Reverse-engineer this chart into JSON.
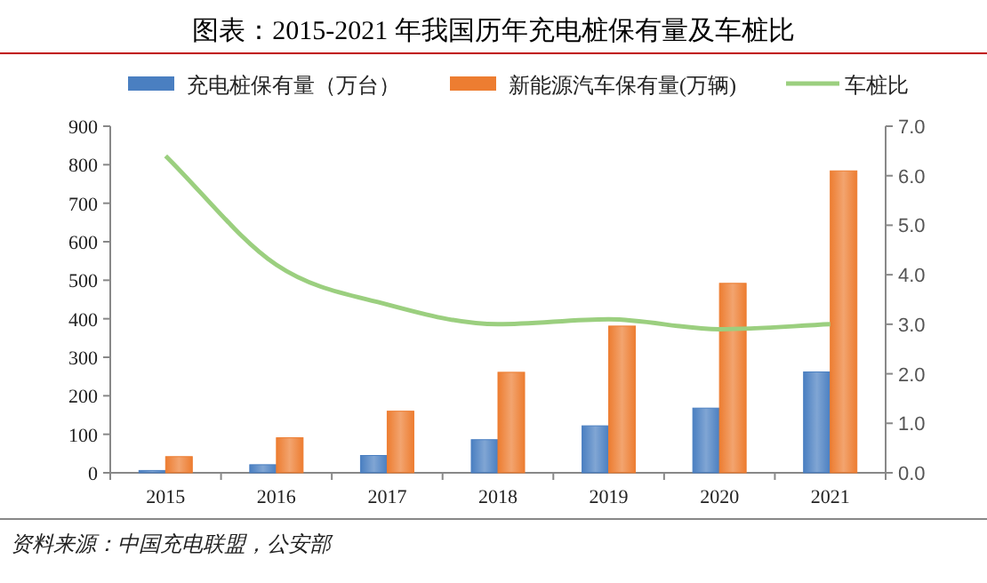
{
  "chart_data": {
    "type": "bar",
    "title": "图表：2015-2021 年我国历年充电桩保有量及车桩比",
    "categories": [
      "2015",
      "2016",
      "2017",
      "2018",
      "2019",
      "2020",
      "2021"
    ],
    "series": [
      {
        "name": "充电桩保有量（万台）",
        "color": "#4a7fc1",
        "values": [
          6,
          21,
          45,
          86,
          122,
          168,
          262
        ]
      },
      {
        "name": "新能源汽车保有量(万辆)",
        "color": "#ed7d31",
        "values": [
          42,
          91,
          160,
          261,
          381,
          492,
          784
        ]
      },
      {
        "name": "车桩比",
        "type": "line",
        "axis": "y2",
        "color": "#9bcf7f",
        "values": [
          6.4,
          4.2,
          3.4,
          3.0,
          3.1,
          2.9,
          3.0
        ]
      }
    ],
    "ylim": [
      0,
      900
    ],
    "yticks": [
      0,
      100,
      200,
      300,
      400,
      500,
      600,
      700,
      800,
      900
    ],
    "y2lim": [
      0,
      7
    ],
    "y2ticks": [
      {
        "value": 0,
        "label": "0.0"
      },
      {
        "value": 1,
        "label": "1.0"
      },
      {
        "value": 2,
        "label": "2.0"
      },
      {
        "value": 3,
        "label": "3.0"
      },
      {
        "value": 4,
        "label": "4.0"
      },
      {
        "value": 5,
        "label": "5.0"
      },
      {
        "value": 6,
        "label": "6.0"
      },
      {
        "value": 7,
        "label": "7.0"
      }
    ],
    "legend": "top",
    "grid": false,
    "annotations": [
      "资料来源：中国充电联盟，公安部"
    ]
  }
}
